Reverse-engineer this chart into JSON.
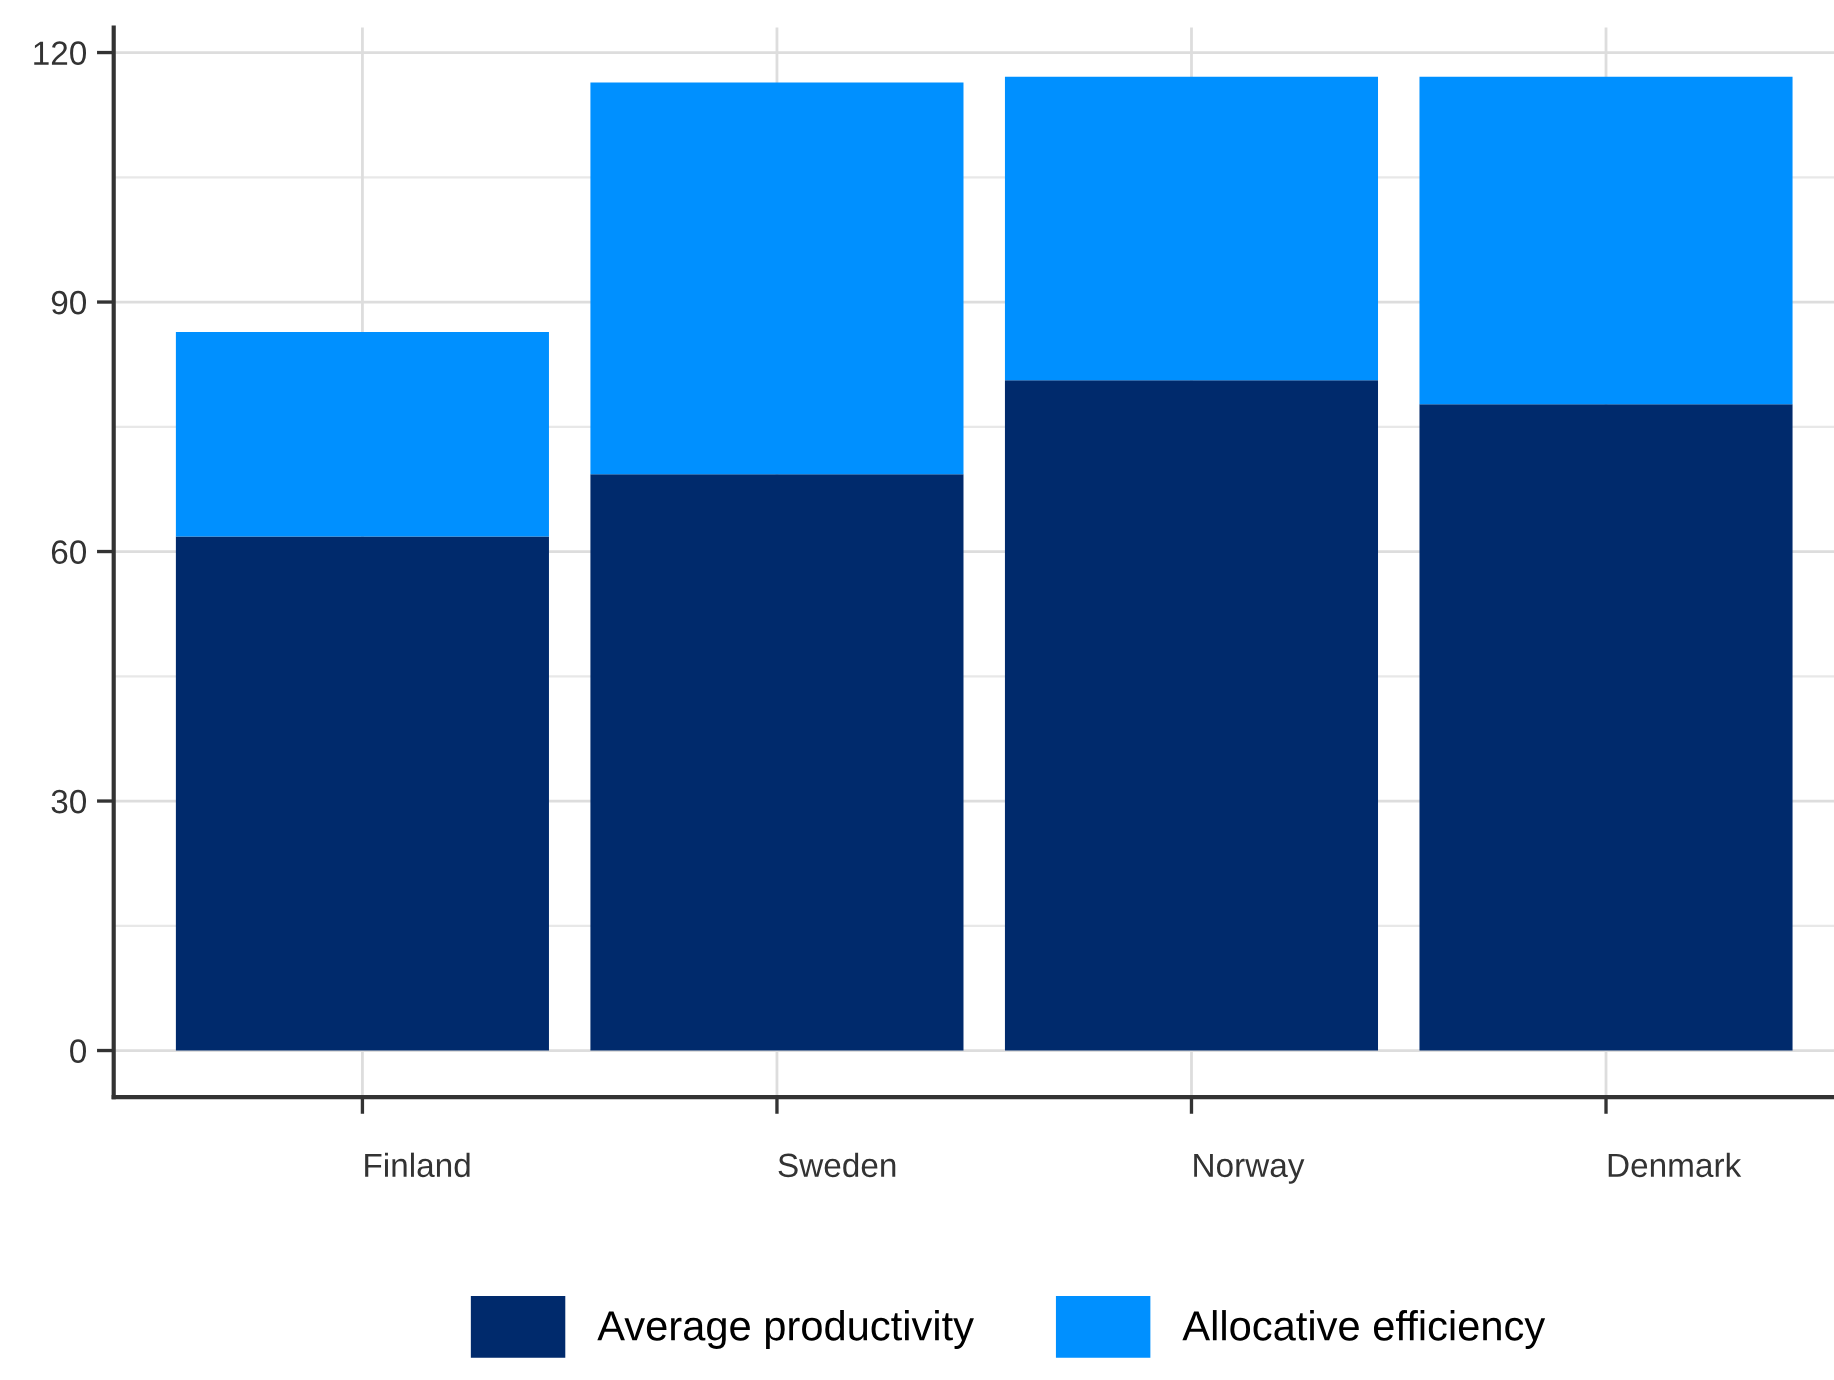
{
  "chart_data": {
    "type": "bar",
    "stacked": true,
    "categories": [
      "Finland",
      "Sweden",
      "Norway",
      "Denmark"
    ],
    "series": [
      {
        "name": "Average productivity",
        "color": "#002a6c",
        "values": [
          61.8,
          69.3,
          80.6,
          77.7
        ]
      },
      {
        "name": "Allocative efficiency",
        "color": "#0090ff",
        "values": [
          24.6,
          47.1,
          36.5,
          39.4
        ]
      }
    ],
    "ylim": [
      -5.6,
      123
    ],
    "yticks": [
      0,
      30,
      60,
      90,
      120
    ],
    "grid": true,
    "legend": "bottom"
  }
}
